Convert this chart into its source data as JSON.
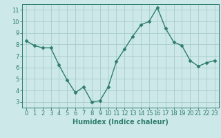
{
  "x": [
    0,
    1,
    2,
    3,
    4,
    5,
    6,
    7,
    8,
    9,
    10,
    11,
    12,
    13,
    14,
    15,
    16,
    17,
    18,
    19,
    20,
    21,
    22,
    23
  ],
  "y": [
    8.3,
    7.9,
    7.7,
    7.7,
    6.2,
    4.9,
    3.8,
    4.3,
    3.0,
    3.1,
    4.3,
    6.5,
    7.6,
    8.7,
    9.7,
    10.0,
    11.2,
    9.4,
    8.2,
    7.9,
    6.6,
    6.1,
    6.4,
    6.6
  ],
  "line_color": "#2e7d6e",
  "marker_color": "#2e7d6e",
  "bg_color": "#cce8e8",
  "grid_color": "#aacccc",
  "xlabel": "Humidex (Indice chaleur)",
  "ylim": [
    2.5,
    11.5
  ],
  "xlim": [
    -0.5,
    23.5
  ],
  "yticks": [
    3,
    4,
    5,
    6,
    7,
    8,
    9,
    10,
    11
  ],
  "xticks": [
    0,
    1,
    2,
    3,
    4,
    5,
    6,
    7,
    8,
    9,
    10,
    11,
    12,
    13,
    14,
    15,
    16,
    17,
    18,
    19,
    20,
    21,
    22,
    23
  ],
  "tick_color": "#2e7d6e",
  "spine_color": "#2e7d6e",
  "label_color": "#2e7d6e",
  "xlabel_fontsize": 7,
  "tick_fontsize": 6
}
